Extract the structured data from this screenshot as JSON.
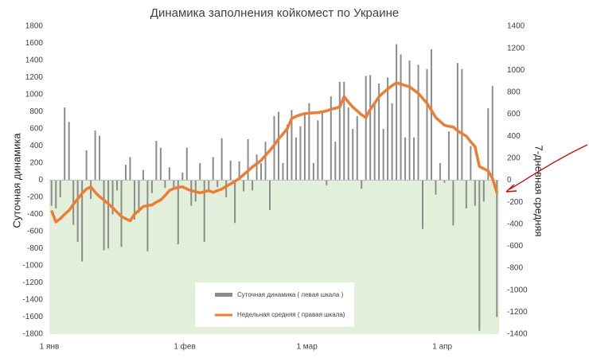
{
  "chart_data": {
    "type": "combo",
    "title": "Динамика заполнения койкомест по Украине",
    "y_label": "Суточная динамика",
    "y2_label": "7-дневная средняя",
    "categories": [
      "1 янв",
      null,
      null,
      null,
      null,
      null,
      null,
      null,
      null,
      null,
      null,
      null,
      null,
      null,
      null,
      null,
      null,
      null,
      null,
      null,
      null,
      null,
      null,
      null,
      null,
      null,
      null,
      null,
      null,
      null,
      null,
      "1 фев",
      null,
      null,
      null,
      null,
      null,
      null,
      null,
      null,
      null,
      null,
      null,
      null,
      null,
      null,
      null,
      null,
      null,
      null,
      null,
      null,
      null,
      null,
      null,
      null,
      null,
      null,
      null,
      "1 мар",
      null,
      null,
      null,
      null,
      null,
      null,
      null,
      null,
      null,
      null,
      null,
      null,
      null,
      null,
      null,
      null,
      null,
      null,
      null,
      null,
      null,
      null,
      null,
      null,
      null,
      null,
      null,
      null,
      null,
      null,
      "1 апр",
      null,
      null,
      null,
      null,
      null,
      null,
      null,
      null,
      null,
      null,
      null,
      null
    ],
    "ylim": [
      -1800,
      1800
    ],
    "yticks": [
      -1800,
      -1600,
      -1400,
      -1200,
      -1000,
      -800,
      -600,
      -400,
      -200,
      0,
      200,
      400,
      600,
      800,
      1000,
      1200,
      1400,
      1600,
      1800
    ],
    "y2lim": [
      -1400,
      1400
    ],
    "y2ticks": [
      -1400,
      -1200,
      -1000,
      -800,
      -600,
      -400,
      -200,
      0,
      200,
      400,
      600,
      800,
      1000,
      1200,
      1400
    ],
    "negative_fill": "#e2efda",
    "series": [
      {
        "name": "Суточная динамика ( левая шкала )",
        "type": "bar",
        "color": "#8c8c8c",
        "values": [
          -300,
          -330,
          -200,
          850,
          680,
          -520,
          -720,
          -950,
          350,
          -220,
          580,
          520,
          -820,
          -800,
          -400,
          -120,
          -780,
          180,
          270,
          -460,
          -380,
          120,
          -830,
          -150,
          460,
          380,
          -90,
          150,
          -80,
          -750,
          90,
          380,
          -300,
          -250,
          200,
          -720,
          -120,
          270,
          -80,
          490,
          -200,
          230,
          -500,
          220,
          -130,
          480,
          -120,
          300,
          200,
          450,
          -350,
          750,
          800,
          200,
          650,
          820,
          500,
          630,
          780,
          900,
          200,
          700,
          800,
          -60,
          980,
          450,
          1150,
          1150,
          850,
          600,
          750,
          -100,
          1220,
          1230,
          900,
          1130,
          600,
          1200,
          900,
          1590,
          1470,
          500,
          1400,
          500,
          1350,
          -570,
          1300,
          1530,
          -170,
          200,
          -30,
          570,
          -530,
          1370,
          1300,
          -330,
          400,
          -300,
          -1760,
          -250,
          840,
          1100,
          -1600
        ]
      },
      {
        "name": "Недельная средняя ( правая шкала)",
        "type": "line",
        "axis": "y2",
        "color": "#ed7d31",
        "values": [
          -275,
          -380,
          -350,
          -310,
          -275,
          -220,
          -170,
          -120,
          -80,
          -60,
          -110,
          -150,
          -180,
          -215,
          -250,
          -290,
          -330,
          -350,
          -370,
          -310,
          -275,
          -240,
          -230,
          -225,
          -200,
          -180,
          -140,
          -95,
          -75,
          -65,
          -60,
          -80,
          -95,
          -105,
          -115,
          -105,
          -95,
          -110,
          -95,
          -80,
          -55,
          -35,
          -10,
          15,
          50,
          85,
          120,
          150,
          180,
          225,
          270,
          320,
          375,
          420,
          470,
          560,
          580,
          595,
          605,
          610,
          612,
          615,
          622,
          630,
          645,
          655,
          665,
          760,
          710,
          665,
          630,
          595,
          570,
          645,
          700,
          760,
          795,
          830,
          860,
          885,
          875,
          860,
          850,
          820,
          790,
          745,
          700,
          635,
          570,
          535,
          500,
          490,
          485,
          450,
          425,
          400,
          350,
          305,
          125,
          105,
          85,
          15,
          -115
        ]
      }
    ]
  }
}
